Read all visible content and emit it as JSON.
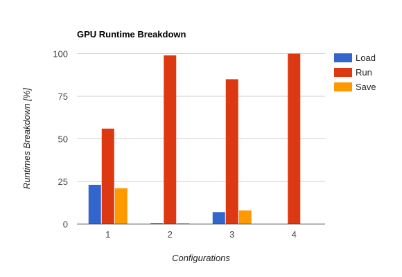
{
  "chart_data": {
    "type": "bar",
    "title": "GPU Runtime Breakdown",
    "xlabel": "Configurations",
    "ylabel": "Runtimes Breakdown [%]",
    "categories": [
      "1",
      "2",
      "3",
      "4"
    ],
    "ylim": [
      0,
      100
    ],
    "yticks": [
      "0",
      "25",
      "50",
      "75",
      "100"
    ],
    "legend_position": "right",
    "grid": true,
    "series": [
      {
        "name": "Load",
        "color": "#3366cc",
        "values": [
          23,
          0.5,
          7,
          0
        ]
      },
      {
        "name": "Run",
        "color": "#dc3912",
        "values": [
          56,
          99,
          85,
          100
        ]
      },
      {
        "name": "Save",
        "color": "#ff9900",
        "values": [
          21,
          0.5,
          8,
          0
        ]
      }
    ]
  }
}
